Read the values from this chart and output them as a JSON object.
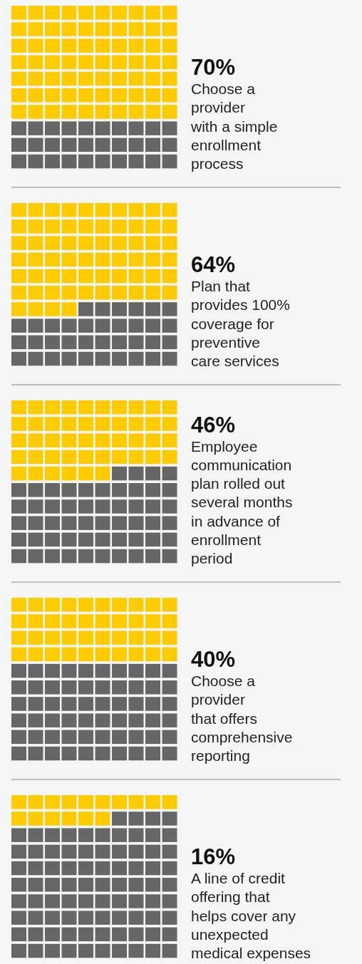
{
  "chart_data": [
    {
      "type": "other",
      "categories": [
        "Choose a\nprovider\nwith a simple\nenrollment\nprocess"
      ],
      "values": [
        70
      ],
      "value_labels": [
        "70%"
      ],
      "color": "#fecb00"
    },
    {
      "type": "other",
      "categories": [
        "Plan that\nprovides 100%\ncoverage for\npreventive\ncare services"
      ],
      "values": [
        64
      ],
      "value_labels": [
        "64%"
      ],
      "color": "#fecb00"
    },
    {
      "type": "other",
      "categories": [
        "Employee\ncommunication\nplan rolled out\nseveral months\nin advance of\nenrollment\nperiod"
      ],
      "values": [
        46
      ],
      "value_labels": [
        "46%"
      ],
      "color": "#fecb00"
    },
    {
      "type": "other",
      "categories": [
        "Choose a\nprovider\nthat offers\ncomprehensive\nreporting"
      ],
      "values": [
        40
      ],
      "value_labels": [
        "40%"
      ],
      "color": "#fecb00"
    },
    {
      "type": "other",
      "categories": [
        "A line of credit\noffering that\nhelps cover any\nunexpected\nmedical expenses"
      ],
      "values": [
        16
      ],
      "value_labels": [
        "16%"
      ],
      "color": "#fecb00"
    }
  ]
}
